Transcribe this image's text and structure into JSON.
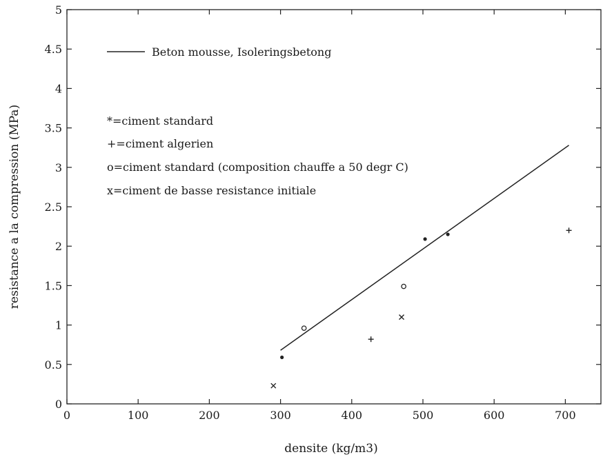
{
  "chart_data": {
    "type": "scatter",
    "xlabel": "densite (kg/m3)",
    "ylabel": "resistance a la compression (MPa)",
    "xlim": [
      0,
      750
    ],
    "ylim": [
      0,
      5
    ],
    "x_ticks": [
      "0",
      "100",
      "200",
      "300",
      "400",
      "500",
      "600",
      "700"
    ],
    "y_ticks": [
      "0",
      "0.5",
      "1",
      "1.5",
      "2",
      "2.5",
      "3",
      "3.5",
      "4",
      "4.5",
      "5"
    ],
    "grid": false,
    "line": {
      "name": "Beton mousse, Isoleringsbetong",
      "x": [
        300,
        705
      ],
      "y": [
        0.68,
        3.28
      ]
    },
    "legend": [
      "Beton mousse, Isoleringsbetong",
      "*=ciment standard",
      "+=ciment algerien",
      "o=ciment standard (composition chauffe a 50 degr C)",
      "x=ciment de basse resistance initiale"
    ],
    "series": [
      {
        "symbol": "*",
        "x": [
          302,
          503,
          535
        ],
        "y": [
          0.59,
          2.09,
          2.15
        ]
      },
      {
        "symbol": "+",
        "x": [
          427,
          705
        ],
        "y": [
          0.82,
          2.2
        ]
      },
      {
        "symbol": "o",
        "x": [
          333,
          473
        ],
        "y": [
          0.96,
          1.49
        ]
      },
      {
        "symbol": "x",
        "x": [
          290,
          470
        ],
        "y": [
          0.23,
          1.1
        ]
      }
    ]
  }
}
